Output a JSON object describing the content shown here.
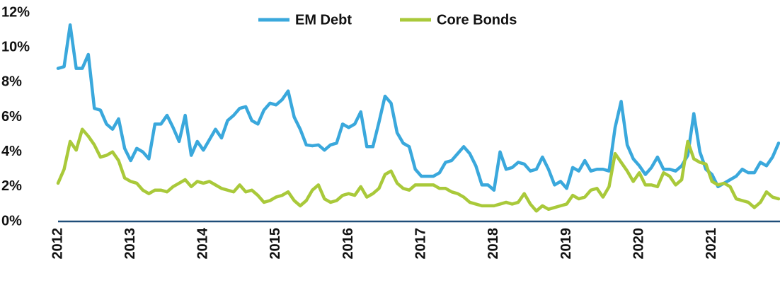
{
  "chart_data": {
    "type": "line",
    "categories": [
      "2012",
      null,
      null,
      null,
      null,
      null,
      null,
      null,
      null,
      null,
      null,
      null,
      "2013",
      null,
      null,
      null,
      null,
      null,
      null,
      null,
      null,
      null,
      null,
      null,
      "2014",
      null,
      null,
      null,
      null,
      null,
      null,
      null,
      null,
      null,
      null,
      null,
      "2015",
      null,
      null,
      null,
      null,
      null,
      null,
      null,
      null,
      null,
      null,
      null,
      "2016",
      null,
      null,
      null,
      null,
      null,
      null,
      null,
      null,
      null,
      null,
      null,
      "2017",
      null,
      null,
      null,
      null,
      null,
      null,
      null,
      null,
      null,
      null,
      null,
      "2018",
      null,
      null,
      null,
      null,
      null,
      null,
      null,
      null,
      null,
      null,
      null,
      "2019",
      null,
      null,
      null,
      null,
      null,
      null,
      null,
      null,
      null,
      null,
      null,
      "2020",
      null,
      null,
      null,
      null,
      null,
      null,
      null,
      null,
      null,
      null,
      null,
      "2021",
      null,
      null,
      null,
      null,
      null,
      null,
      null,
      null,
      null,
      null,
      null
    ],
    "series": [
      {
        "name": "EM Debt",
        "color": "#3aa8dc",
        "values": [
          8.8,
          8.9,
          11.3,
          8.8,
          8.8,
          9.6,
          6.5,
          6.4,
          5.6,
          5.3,
          5.9,
          4.2,
          3.5,
          4.2,
          4.0,
          3.6,
          5.6,
          5.6,
          6.1,
          5.4,
          4.6,
          6.1,
          3.8,
          4.6,
          4.1,
          4.7,
          5.3,
          4.8,
          5.8,
          6.1,
          6.5,
          6.6,
          5.8,
          5.6,
          6.4,
          6.8,
          6.7,
          7.0,
          7.5,
          6.0,
          5.3,
          4.4,
          4.35,
          4.4,
          4.1,
          4.4,
          4.5,
          5.6,
          5.4,
          5.6,
          6.3,
          4.3,
          4.3,
          5.7,
          7.2,
          6.8,
          5.1,
          4.5,
          4.3,
          3.0,
          2.6,
          2.6,
          2.6,
          2.8,
          3.4,
          3.5,
          3.9,
          4.3,
          3.9,
          3.2,
          2.1,
          2.1,
          1.8,
          4.0,
          3.0,
          3.1,
          3.4,
          3.3,
          2.9,
          3.0,
          3.7,
          3.0,
          2.1,
          2.3,
          1.9,
          3.1,
          2.9,
          3.5,
          2.9,
          3.0,
          3.0,
          2.9,
          5.4,
          6.9,
          4.4,
          3.6,
          3.2,
          2.7,
          3.1,
          3.7,
          3.0,
          3.0,
          2.9,
          3.2,
          3.8,
          6.2,
          4.0,
          3.0,
          2.7,
          2.0,
          2.2,
          2.4,
          2.6,
          3.0,
          2.8,
          2.8,
          3.4,
          3.2,
          3.7,
          4.5
        ]
      },
      {
        "name": "Core Bonds",
        "color": "#a9c93a",
        "values": [
          2.2,
          3.0,
          4.6,
          4.1,
          5.3,
          4.9,
          4.4,
          3.7,
          3.8,
          4.0,
          3.5,
          2.5,
          2.3,
          2.2,
          1.8,
          1.6,
          1.8,
          1.8,
          1.7,
          2.0,
          2.2,
          2.4,
          2.0,
          2.3,
          2.2,
          2.3,
          2.1,
          1.9,
          1.8,
          1.7,
          2.1,
          1.7,
          1.8,
          1.5,
          1.1,
          1.2,
          1.4,
          1.5,
          1.7,
          1.2,
          0.9,
          1.2,
          1.8,
          2.1,
          1.3,
          1.1,
          1.2,
          1.5,
          1.6,
          1.5,
          2.0,
          1.4,
          1.6,
          1.9,
          2.7,
          2.9,
          2.2,
          1.9,
          1.8,
          2.1,
          2.1,
          2.1,
          2.1,
          1.9,
          1.9,
          1.7,
          1.6,
          1.4,
          1.1,
          1.0,
          0.9,
          0.9,
          0.9,
          1.0,
          1.1,
          1.0,
          1.1,
          1.6,
          1.0,
          0.6,
          0.9,
          0.7,
          0.8,
          0.9,
          1.0,
          1.5,
          1.3,
          1.4,
          1.8,
          1.9,
          1.4,
          2.0,
          3.9,
          3.4,
          2.9,
          2.3,
          2.8,
          2.1,
          2.1,
          2.0,
          2.8,
          2.6,
          2.1,
          2.4,
          4.6,
          3.6,
          3.4,
          3.3,
          2.3,
          2.1,
          2.2,
          2.0,
          1.3,
          1.2,
          1.1,
          0.8,
          1.1,
          1.7,
          1.4,
          1.3
        ]
      }
    ],
    "ylim": [
      0,
      12
    ],
    "yticks": [
      {
        "value": 0,
        "label": "0%"
      },
      {
        "value": 2,
        "label": "2%"
      },
      {
        "value": 4,
        "label": "4%"
      },
      {
        "value": 6,
        "label": "6%"
      },
      {
        "value": 8,
        "label": "8%"
      },
      {
        "value": 10,
        "label": "10%"
      },
      {
        "value": 12,
        "label": "12%"
      }
    ],
    "grid": false,
    "axis_color": "#1f4e79"
  }
}
